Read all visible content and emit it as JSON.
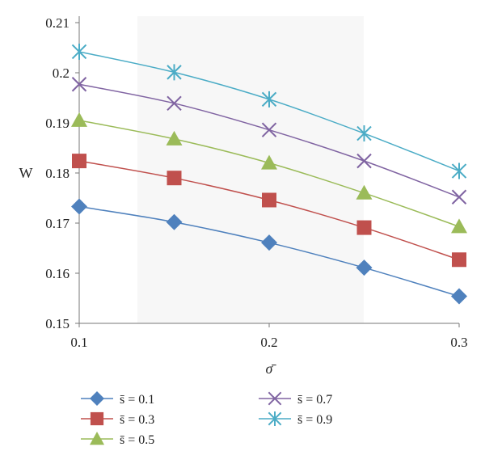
{
  "chart_data": {
    "type": "line",
    "title": "",
    "xlabel": "σ̄",
    "ylabel": "W",
    "xlim": [
      0.1,
      0.3
    ],
    "ylim": [
      0.15,
      0.21
    ],
    "xticks": [
      "0.1",
      "0.2",
      "0.3"
    ],
    "yticks": [
      "0.15",
      "0.16",
      "0.17",
      "0.18",
      "0.19",
      "0.2",
      "0.21"
    ],
    "x": [
      0.1,
      0.15,
      0.2,
      0.25,
      0.3
    ],
    "grid": false,
    "legend_position": "bottom",
    "series": [
      {
        "name": "s̄ = 0.1",
        "values": [
          0.1733,
          0.1702,
          0.1661,
          0.1611,
          0.1554
        ],
        "color": "#4f81bd",
        "marker": "diamond"
      },
      {
        "name": "s̄ = 0.3",
        "values": [
          0.1824,
          0.179,
          0.1746,
          0.1691,
          0.1627
        ],
        "color": "#c0504d",
        "marker": "square"
      },
      {
        "name": "s̄ = 0.5",
        "values": [
          0.1905,
          0.1868,
          0.182,
          0.176,
          0.1693
        ],
        "color": "#9bbb59",
        "marker": "triangle"
      },
      {
        "name": "s̄ = 0.7",
        "values": [
          0.1977,
          0.1939,
          0.1886,
          0.1824,
          0.1752
        ],
        "color": "#8064a2",
        "marker": "x"
      },
      {
        "name": "s̄ = 0.9",
        "values": [
          0.2042,
          0.2001,
          0.1947,
          0.1879,
          0.1804
        ],
        "color": "#4bacc6",
        "marker": "star"
      }
    ]
  }
}
